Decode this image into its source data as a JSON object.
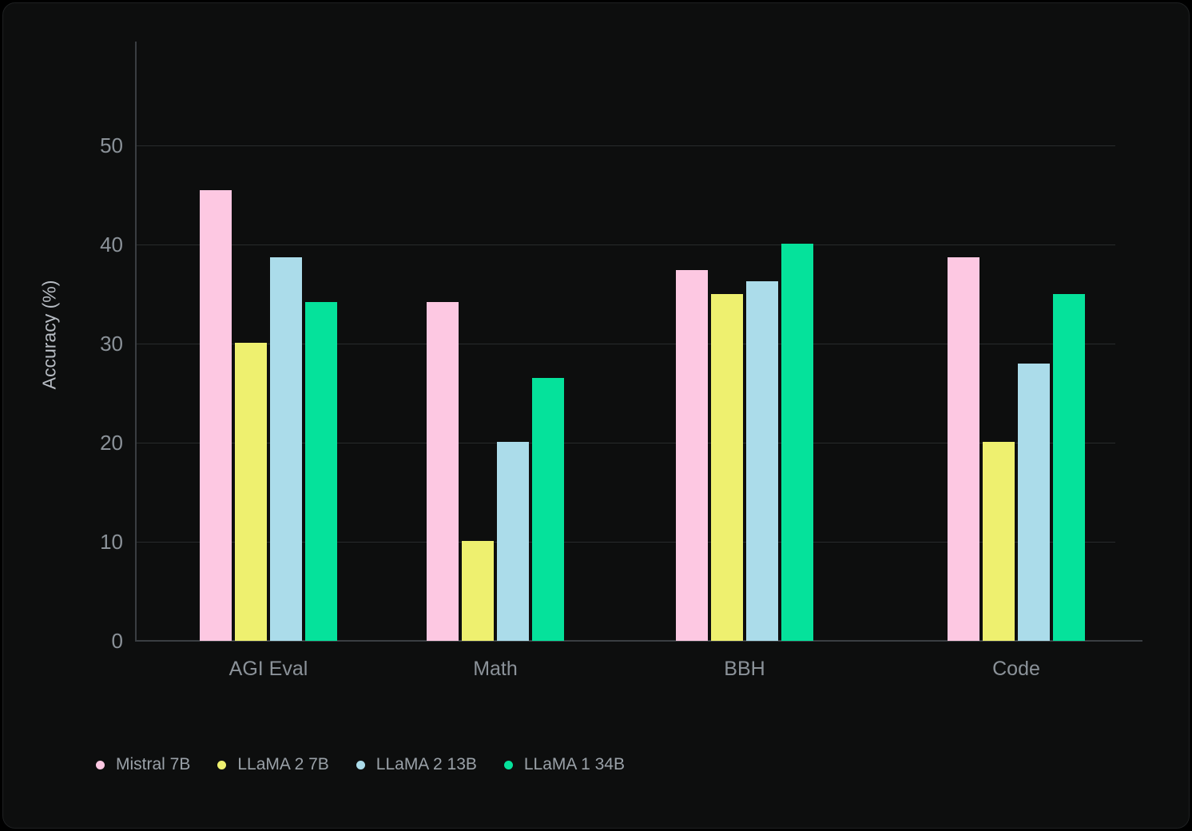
{
  "theme": {
    "page_background": "#000000",
    "panel_background": "#0d0e0e",
    "panel_border": "#1e2021",
    "grid_line": "#282b2c",
    "axis_line": "#3a3e42",
    "tick_label_color": "#8b9299",
    "category_label_color": "#8b9299",
    "legend_label_color": "#9aa1a8",
    "axis_title_color": "#b8bdc4"
  },
  "chart_data": {
    "type": "bar",
    "title": "",
    "categories": [
      "AGI Eval",
      "Math",
      "BBH",
      "Code"
    ],
    "series": [
      {
        "name": "Mistral 7B",
        "color": "#fdc8e2",
        "values": [
          45.5,
          34.2,
          37.4,
          38.7
        ]
      },
      {
        "name": "LLaMA 2 7B",
        "color": "#eef06f",
        "values": [
          30.1,
          10.1,
          35.0,
          20.1
        ]
      },
      {
        "name": "LLaMA 2 13B",
        "color": "#abdcea",
        "values": [
          38.7,
          20.1,
          36.3,
          28.0
        ]
      },
      {
        "name": "LLaMA 1 34B",
        "color": "#05e29b",
        "values": [
          34.2,
          26.5,
          40.1,
          35.0
        ]
      }
    ],
    "xlabel": "",
    "ylabel": "Accuracy (%)",
    "ylim": [
      0,
      50
    ],
    "yticks": [
      0,
      10,
      20,
      30,
      40,
      50
    ],
    "grid": "horizontal",
    "legend_position": "bottom-left"
  }
}
